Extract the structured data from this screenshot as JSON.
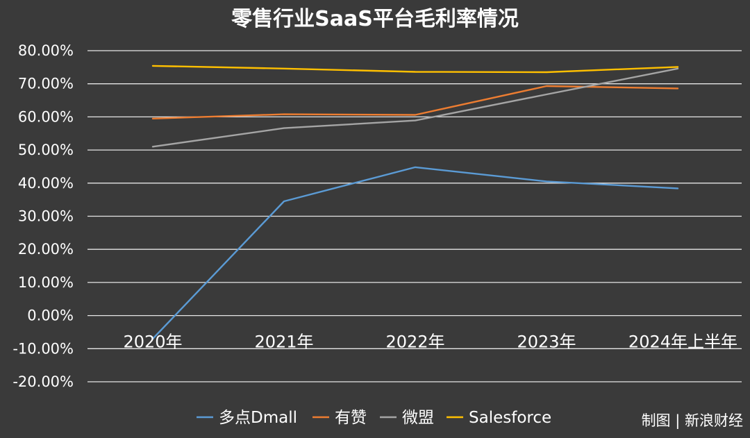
{
  "chart_data": {
    "type": "line",
    "title": "零售行业SaaS平台毛利率情况",
    "categories": [
      "2020年",
      "2021年",
      "2022年",
      "2023年",
      "2024年上半年"
    ],
    "ylim": [
      -20,
      80
    ],
    "yticks": [
      -20,
      -10,
      0,
      10,
      20,
      30,
      40,
      50,
      60,
      70,
      80
    ],
    "ytick_labels": [
      "-20.00%",
      "-10.00%",
      "0.00%",
      "10.00%",
      "20.00%",
      "30.00%",
      "40.00%",
      "50.00%",
      "60.00%",
      "70.00%",
      "80.00%"
    ],
    "xlabel": "",
    "ylabel": "",
    "grid": true,
    "legend_position": "bottom",
    "series": [
      {
        "name": "多点Dmall",
        "color": "#5b9bd5",
        "values": [
          -7.0,
          34.5,
          44.8,
          40.5,
          38.4
        ]
      },
      {
        "name": "有赞",
        "color": "#ed7d31",
        "values": [
          59.5,
          60.8,
          60.6,
          69.3,
          68.6
        ]
      },
      {
        "name": "微盟",
        "color": "#a5a5a5",
        "values": [
          51.0,
          56.6,
          58.9,
          66.8,
          74.6
        ]
      },
      {
        "name": "Salesforce",
        "color": "#ffc000",
        "values": [
          75.4,
          74.6,
          73.6,
          73.5,
          75.1
        ]
      }
    ]
  },
  "credit": "制图 | 新浪财经"
}
